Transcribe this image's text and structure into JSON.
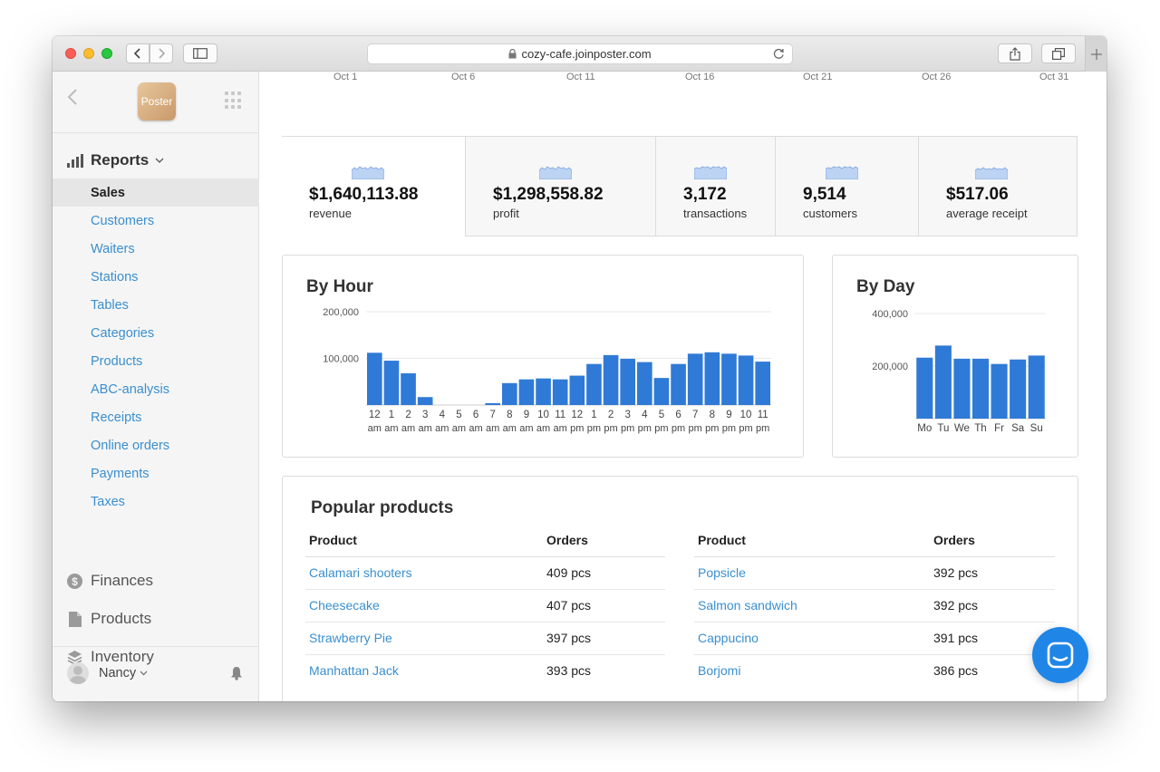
{
  "browser": {
    "url": "cozy-cafe.joinposter.com"
  },
  "sidebar": {
    "logo_text": "Poster",
    "reports_label": "Reports",
    "report_items": [
      {
        "label": "Sales",
        "active": true
      },
      {
        "label": "Customers"
      },
      {
        "label": "Waiters"
      },
      {
        "label": "Stations"
      },
      {
        "label": "Tables"
      },
      {
        "label": "Categories"
      },
      {
        "label": "Products"
      },
      {
        "label": "ABC-analysis"
      },
      {
        "label": "Receipts"
      },
      {
        "label": "Online orders"
      },
      {
        "label": "Payments"
      },
      {
        "label": "Taxes"
      }
    ],
    "sections": [
      {
        "label": "Finances",
        "icon": "dollar-icon"
      },
      {
        "label": "Products",
        "icon": "document-icon"
      },
      {
        "label": "Inventory",
        "icon": "layers-icon"
      }
    ],
    "user_name": "Nancy"
  },
  "date_axis": [
    "Oct 1",
    "Oct 6",
    "Oct 11",
    "Oct 16",
    "Oct 21",
    "Oct 26",
    "Oct 31"
  ],
  "stats": [
    {
      "value": "$1,640,113.88",
      "label": "revenue",
      "active": true
    },
    {
      "value": "$1,298,558.82",
      "label": "profit"
    },
    {
      "value": "3,172",
      "label": "transactions"
    },
    {
      "value": "9,514",
      "label": "customers"
    },
    {
      "value": "$517.06",
      "label": "average receipt"
    }
  ],
  "by_hour": {
    "title": "By Hour"
  },
  "by_day": {
    "title": "By Day"
  },
  "chart_data": [
    {
      "type": "bar",
      "title": "By Hour",
      "categories": [
        "12 am",
        "1 am",
        "2 am",
        "3 am",
        "4 am",
        "5 am",
        "6 am",
        "7 am",
        "8 am",
        "9 am",
        "10 am",
        "11 am",
        "12 pm",
        "1 pm",
        "2 pm",
        "3 pm",
        "4 pm",
        "5 pm",
        "6 pm",
        "7 pm",
        "8 pm",
        "9 pm",
        "10 pm",
        "11 pm"
      ],
      "values": [
        112000,
        95000,
        68000,
        17000,
        0,
        0,
        0,
        4000,
        47000,
        55000,
        57000,
        55000,
        63000,
        88000,
        107000,
        99000,
        92000,
        58000,
        88000,
        110000,
        113000,
        110000,
        106000,
        93000
      ],
      "yticks": [
        "200,000",
        "100,000"
      ],
      "ylim": [
        0,
        200000
      ],
      "bar_color": "#2f7ad6",
      "grid": true
    },
    {
      "type": "bar",
      "title": "By Day",
      "categories": [
        "Mo",
        "Tu",
        "We",
        "Th",
        "Fr",
        "Sa",
        "Su"
      ],
      "values": [
        232000,
        278000,
        228000,
        228000,
        208000,
        225000,
        240000
      ],
      "yticks": [
        "400,000",
        "200,000"
      ],
      "ylim": [
        0,
        400000
      ],
      "bar_color": "#2f7ad6",
      "grid": true
    }
  ],
  "popular": {
    "title": "Popular products",
    "col_product": "Product",
    "col_orders": "Orders",
    "left": [
      {
        "name": "Calamari shooters",
        "orders": "409 pcs"
      },
      {
        "name": "Cheesecake",
        "orders": "407 pcs"
      },
      {
        "name": "Strawberry Pie",
        "orders": "397 pcs"
      },
      {
        "name": "Manhattan Jack",
        "orders": "393 pcs"
      }
    ],
    "right": [
      {
        "name": "Popsicle",
        "orders": "392 pcs"
      },
      {
        "name": "Salmon sandwich",
        "orders": "392 pcs"
      },
      {
        "name": "Cappucino",
        "orders": "391 pcs"
      },
      {
        "name": "Borjomi",
        "orders": "386 pcs"
      }
    ]
  },
  "colors": {
    "accent": "#3a8fd0",
    "bar": "#2f7ad6",
    "chat_button": "#1f86e7"
  }
}
